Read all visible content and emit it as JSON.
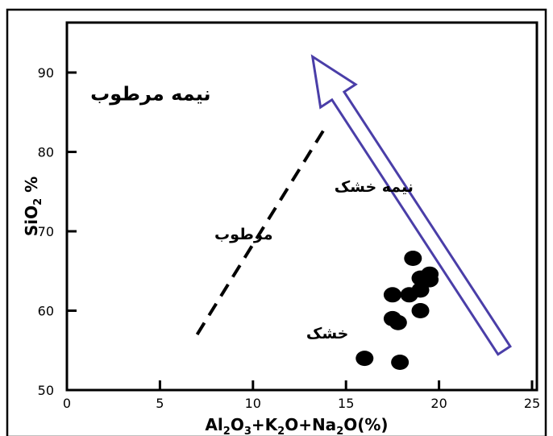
{
  "chart_data": {
    "type": "scatter",
    "title": "",
    "xlabel": "Al2O3+K2O+Na2O(%)",
    "ylabel": "SiO2 %",
    "xlim": [
      0,
      25
    ],
    "ylim": [
      50,
      97
    ],
    "xticks": [
      "0",
      "5",
      "10",
      "15",
      "20",
      "25"
    ],
    "yticks": [
      "50",
      "60",
      "70",
      "80",
      "90"
    ],
    "grid": false,
    "series": [
      {
        "points": [
          [
            18.6,
            66.6
          ],
          [
            19.5,
            64.6
          ],
          [
            19.0,
            64.1
          ],
          [
            19.5,
            63.9
          ],
          [
            17.5,
            62.0
          ],
          [
            19.0,
            62.6
          ],
          [
            18.4,
            62.0
          ],
          [
            19.0,
            60.0
          ],
          [
            17.5,
            59.0
          ],
          [
            17.8,
            58.5
          ],
          [
            16.0,
            54.0
          ],
          [
            17.9,
            53.5
          ]
        ]
      }
    ],
    "boundary_line": {
      "from": [
        7.0,
        57.0
      ],
      "to": [
        14.0,
        83.5
      ],
      "style": "dashed"
    },
    "arrow": {
      "from": [
        23.5,
        55.0
      ],
      "to": [
        13.2,
        92.0
      ],
      "direction": "up-left",
      "color": "#4a3ea8"
    },
    "zone_labels": [
      {
        "text": "نیمه مرطوب",
        "at": [
          4.5,
          86.5
        ]
      },
      {
        "text": "نیمه خشک",
        "at": [
          16.5,
          75.0
        ]
      },
      {
        "text": "مرطوب",
        "at": [
          9.5,
          69.0
        ]
      },
      {
        "text": "خشک",
        "at": [
          14.0,
          56.5
        ]
      }
    ]
  }
}
